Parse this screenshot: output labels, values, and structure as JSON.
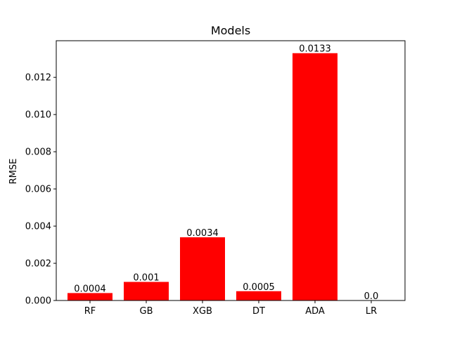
{
  "chart_data": {
    "type": "bar",
    "title": "Models",
    "xlabel": "",
    "ylabel": "RMSE",
    "categories": [
      "RF",
      "GB",
      "XGB",
      "DT",
      "ADA",
      "LR"
    ],
    "values": [
      0.0004,
      0.001,
      0.0034,
      0.0005,
      0.0133,
      0.0
    ],
    "value_labels": [
      "0.0004",
      "0.001",
      "0.0034",
      "0.0005",
      "0.0133",
      "0.0"
    ],
    "ylim": [
      0,
      0.01397
    ],
    "yticks": [
      0.0,
      0.002,
      0.004,
      0.006,
      0.008,
      0.01,
      0.012
    ],
    "ytick_labels": [
      "0.000",
      "0.002",
      "0.004",
      "0.006",
      "0.008",
      "0.010",
      "0.012"
    ],
    "bar_color": "#ff0000",
    "grid": false,
    "legend": "none"
  }
}
